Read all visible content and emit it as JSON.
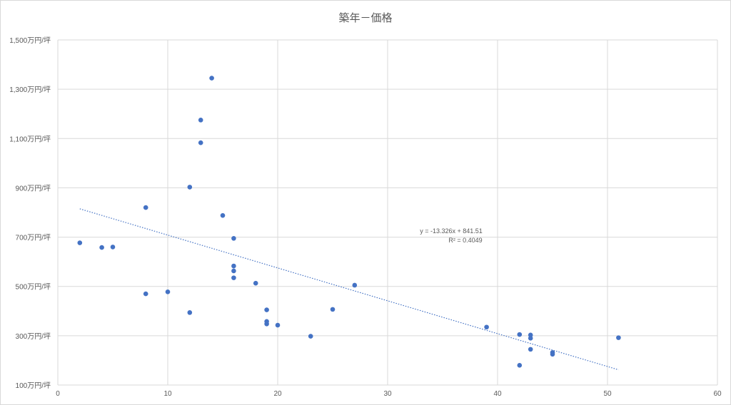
{
  "chart_data": {
    "type": "scatter",
    "title": "築年－価格",
    "xlabel": "",
    "ylabel": "",
    "xlim": [
      0,
      60
    ],
    "ylim": [
      100,
      1500
    ],
    "xticks": [
      "0",
      "10",
      "20",
      "30",
      "40",
      "50",
      "60"
    ],
    "xtick_values": [
      0,
      10,
      20,
      30,
      40,
      50,
      60
    ],
    "yticks": [
      "100万円/坪",
      "300万円/坪",
      "500万円/坪",
      "700万円/坪",
      "900万円/坪",
      "1,100万円/坪",
      "1,300万円/坪",
      "1,500万円/坪"
    ],
    "ytick_values": [
      100,
      300,
      500,
      700,
      900,
      1100,
      1300,
      1500
    ],
    "grid": true,
    "legend": "none",
    "point_color": "#4472c4",
    "trendline_color": "#4472c4",
    "series": [
      {
        "points": [
          [
            2,
            677
          ],
          [
            4,
            658
          ],
          [
            5,
            660
          ],
          [
            8,
            820
          ],
          [
            8,
            470
          ],
          [
            10,
            478
          ],
          [
            12,
            903
          ],
          [
            12,
            394
          ],
          [
            13,
            1175
          ],
          [
            13,
            1083
          ],
          [
            14,
            1345
          ],
          [
            15,
            788
          ],
          [
            16,
            695
          ],
          [
            16,
            583
          ],
          [
            16,
            563
          ],
          [
            16,
            535
          ],
          [
            18,
            513
          ],
          [
            19,
            405
          ],
          [
            19,
            358
          ],
          [
            19,
            348
          ],
          [
            20,
            343
          ],
          [
            23,
            298
          ],
          [
            25,
            407
          ],
          [
            27,
            505
          ],
          [
            39,
            335
          ],
          [
            42,
            305
          ],
          [
            42,
            180
          ],
          [
            43,
            303
          ],
          [
            43,
            290
          ],
          [
            43,
            245
          ],
          [
            45,
            232
          ],
          [
            45,
            225
          ],
          [
            51,
            292
          ]
        ]
      }
    ],
    "trendline": {
      "slope": -13.326,
      "intercept": 841.51,
      "x_range": [
        2,
        51
      ],
      "equation": "y = -13.326x + 841.51",
      "r2": "R² = 0.4049"
    }
  }
}
